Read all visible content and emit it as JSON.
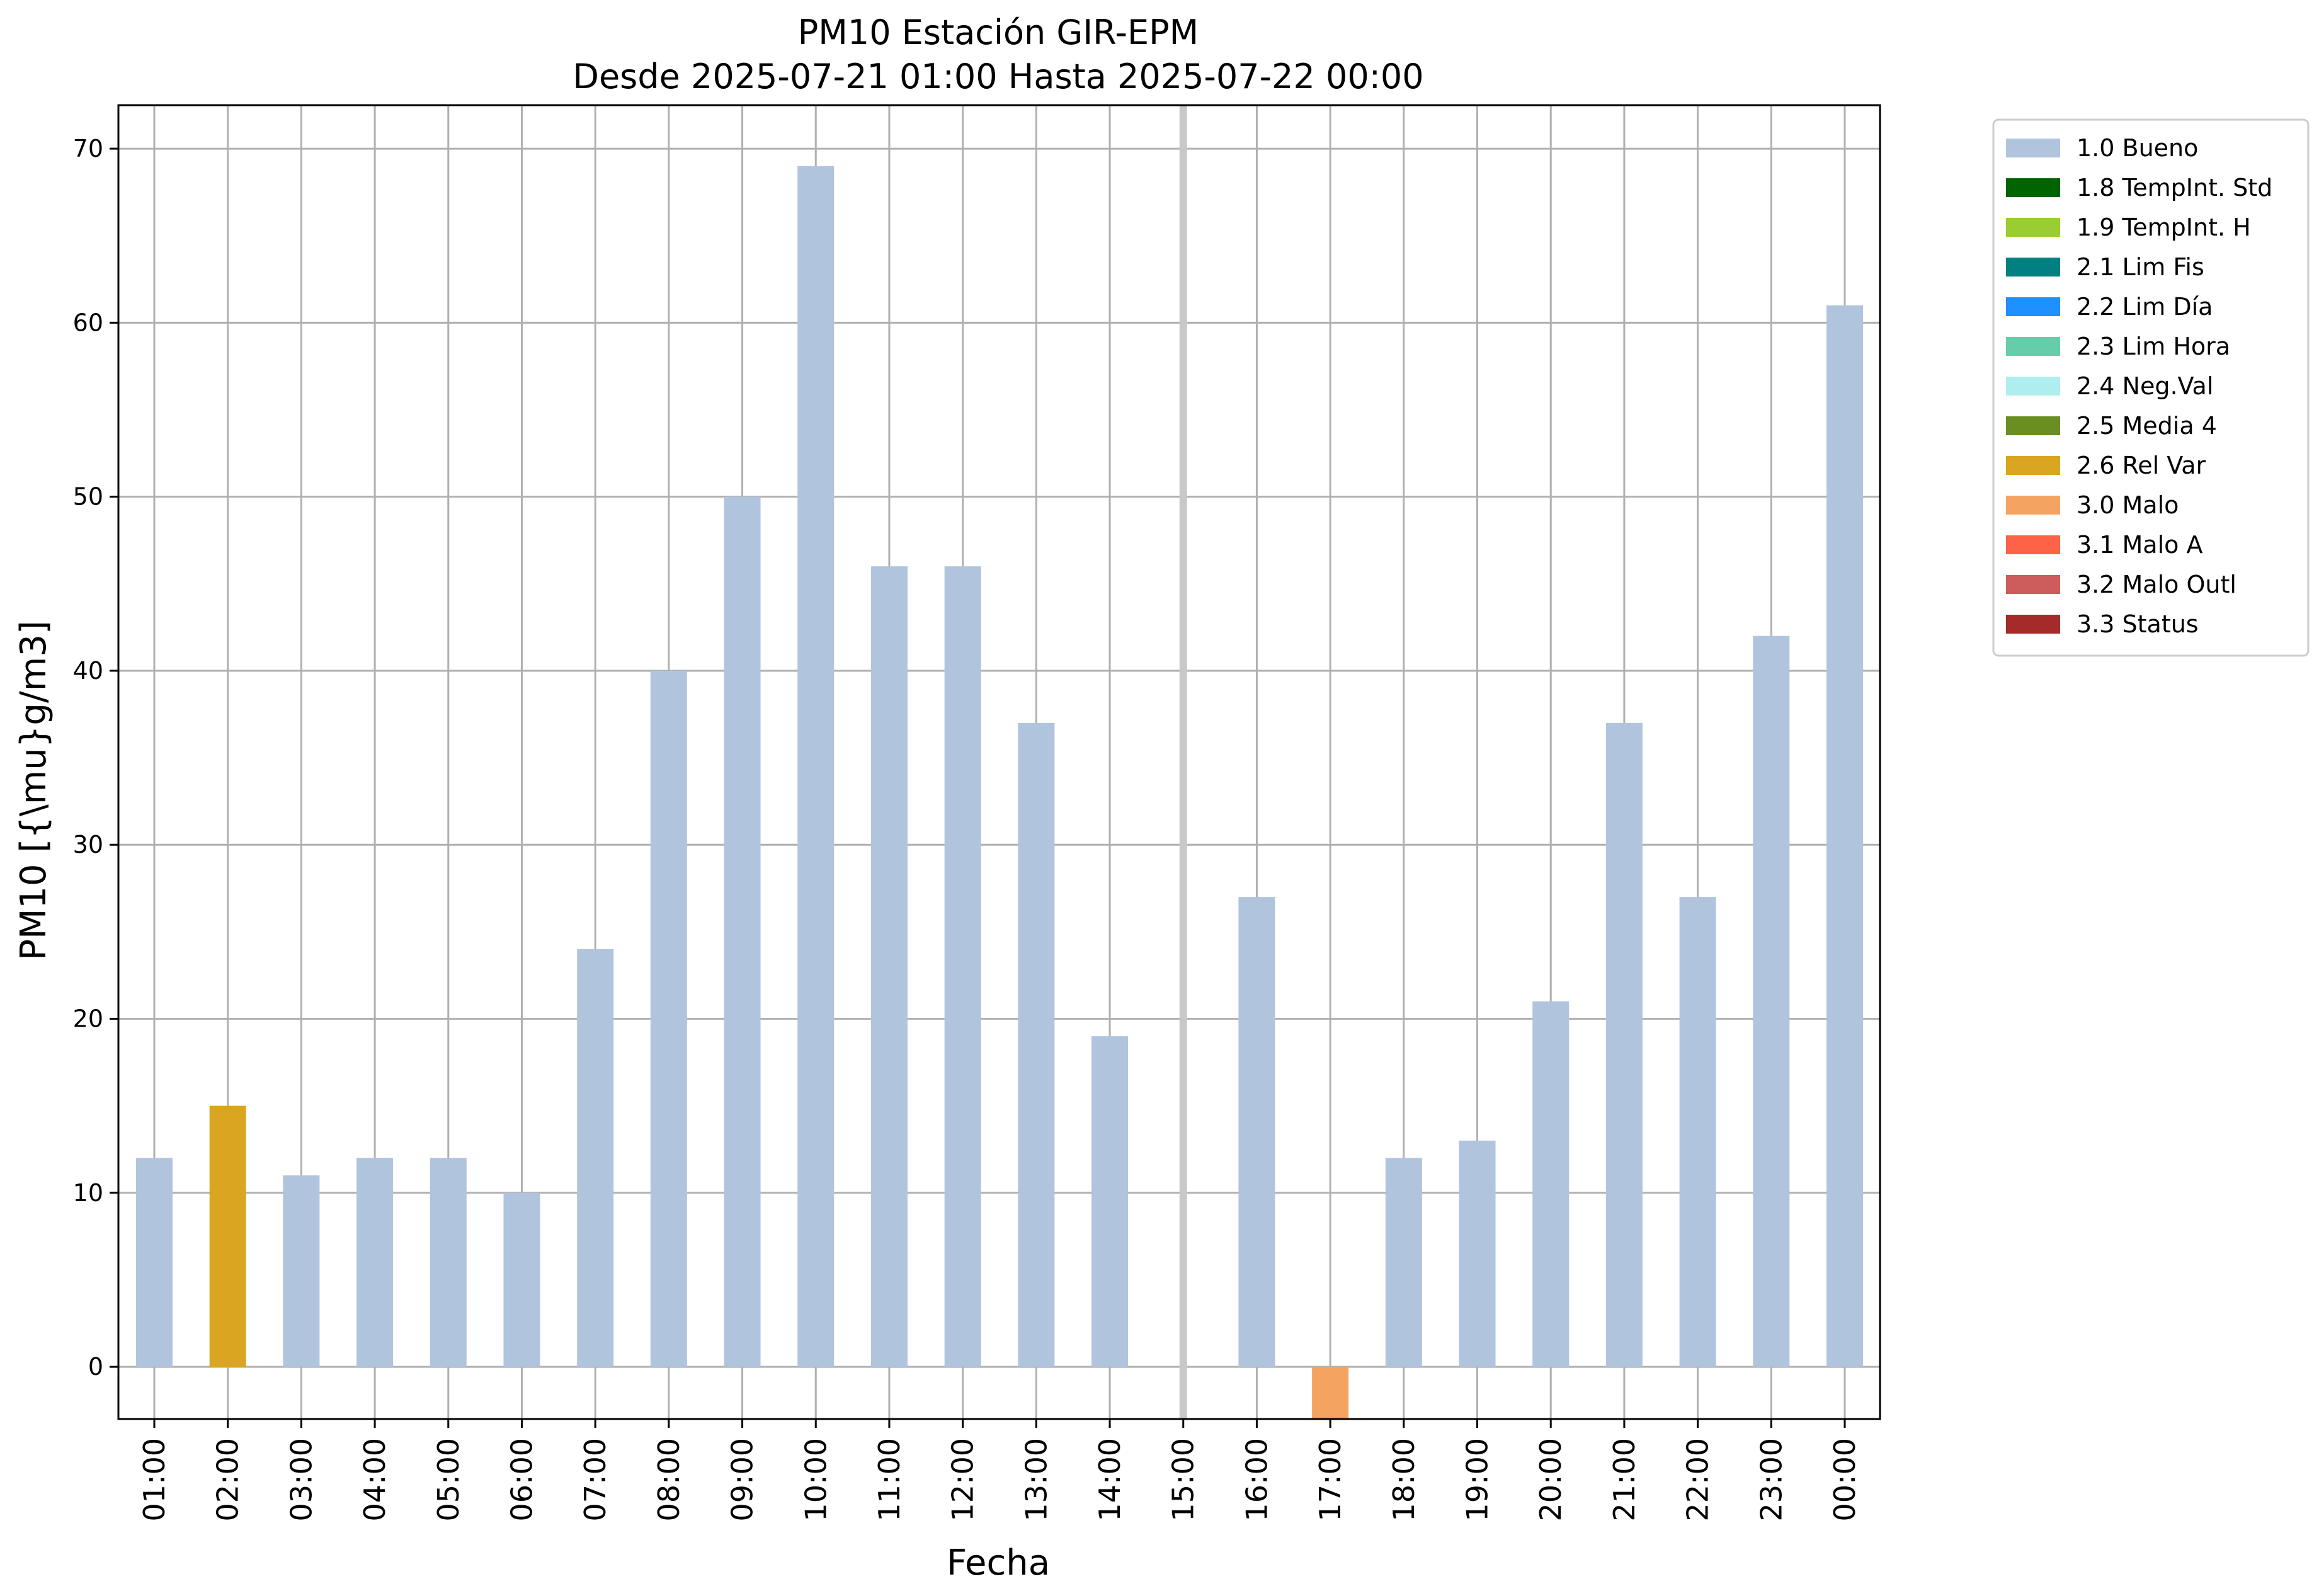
{
  "chart_data": {
    "type": "bar",
    "title": "PM10 Estación GIR-EPM",
    "subtitle": "Desde 2025-07-21 01:00 Hasta 2025-07-22 00:00",
    "xlabel": "Fecha",
    "ylabel": "PM10 [{\\mu}g/m3]",
    "ylim": [
      -3,
      72.5
    ],
    "yticks": [
      0,
      10,
      20,
      30,
      40,
      50,
      60,
      70
    ],
    "grid": true,
    "legend_position": "outside-top-right",
    "categories": [
      "01:00",
      "02:00",
      "03:00",
      "04:00",
      "05:00",
      "06:00",
      "07:00",
      "08:00",
      "09:00",
      "10:00",
      "11:00",
      "12:00",
      "13:00",
      "14:00",
      "15:00",
      "16:00",
      "17:00",
      "18:00",
      "19:00",
      "20:00",
      "21:00",
      "22:00",
      "23:00",
      "00:00"
    ],
    "values": [
      12,
      15,
      11,
      12,
      12,
      10,
      24,
      40,
      50,
      69,
      46,
      46,
      37,
      19,
      null,
      27,
      -3,
      12,
      13,
      21,
      37,
      27,
      42,
      61
    ],
    "flags": [
      "1.0 Bueno",
      "2.6 Rel Var",
      "1.0 Bueno",
      "1.0 Bueno",
      "1.0 Bueno",
      "1.0 Bueno",
      "1.0 Bueno",
      "1.0 Bueno",
      "1.0 Bueno",
      "1.0 Bueno",
      "1.0 Bueno",
      "1.0 Bueno",
      "1.0 Bueno",
      "1.0 Bueno",
      null,
      "1.0 Bueno",
      "3.0 Malo",
      "1.0 Bueno",
      "1.0 Bueno",
      "1.0 Bueno",
      "1.0 Bueno",
      "1.0 Bueno",
      "1.0 Bueno",
      "1.0 Bueno"
    ],
    "missing_marker_category": "15:00",
    "legend": [
      {
        "label": "1.0 Bueno",
        "color": "#b0c4de"
      },
      {
        "label": "1.8 TempInt. Std",
        "color": "#006400"
      },
      {
        "label": "1.9 TempInt. H",
        "color": "#9acd32"
      },
      {
        "label": "2.1 Lim Fis",
        "color": "#008080"
      },
      {
        "label": "2.2 Lim Día",
        "color": "#1e90ff"
      },
      {
        "label": "2.3 Lim Hora",
        "color": "#66cdaa"
      },
      {
        "label": "2.4 Neg.Val",
        "color": "#afeeee"
      },
      {
        "label": "2.5 Media 4",
        "color": "#6b8e23"
      },
      {
        "label": "2.6 Rel Var",
        "color": "#daa520"
      },
      {
        "label": "3.0 Malo",
        "color": "#f4a460"
      },
      {
        "label": "3.1 Malo A",
        "color": "#ff6347"
      },
      {
        "label": "3.2 Malo Outl",
        "color": "#cd5c5c"
      },
      {
        "label": "3.3 Status",
        "color": "#a52a2a"
      }
    ]
  }
}
